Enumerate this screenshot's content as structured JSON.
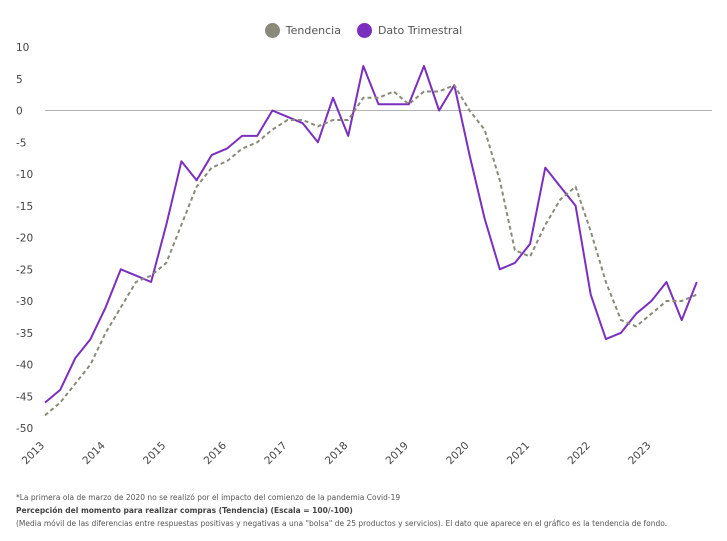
{
  "chart_data": {
    "type": "line",
    "legend": [
      {
        "name": "Tendencia",
        "color": "#8a8a7a",
        "style": "dashed"
      },
      {
        "name": "Dato Trimestral",
        "color": "#7b2fbf",
        "style": "solid"
      }
    ],
    "yticks": [
      10,
      5,
      0,
      -5,
      -10,
      -15,
      -20,
      -25,
      -30,
      -35,
      -40,
      -45,
      -50
    ],
    "ylim": [
      -50,
      10
    ],
    "xticks": [
      "2013",
      "2014",
      "2015",
      "2016",
      "2017",
      "2018",
      "2019",
      "2020",
      "2021",
      "2022",
      "2023"
    ],
    "xlim": [
      2013,
      2024.0
    ],
    "series": [
      {
        "name": "Dato Trimestral",
        "color": "#7b2fbf",
        "x": [
          2013.0,
          2013.25,
          2013.5,
          2013.75,
          2014.0,
          2014.25,
          2014.5,
          2014.75,
          2015.0,
          2015.25,
          2015.5,
          2015.75,
          2016.0,
          2016.25,
          2016.5,
          2016.75,
          2017.0,
          2017.25,
          2017.5,
          2017.75,
          2018.0,
          2018.25,
          2018.5,
          2018.75,
          2019.0,
          2019.25,
          2019.5,
          2019.75,
          2020.0,
          2020.25,
          2020.5,
          2020.75,
          2021.0,
          2021.25,
          2021.5,
          2021.75,
          2022.0,
          2022.25,
          2022.5,
          2022.75,
          2023.0,
          2023.25,
          2023.5,
          2023.75
        ],
        "values": [
          -46,
          -44,
          -39,
          -36,
          -31,
          -25,
          -26,
          -27,
          -18,
          -8,
          -11,
          -7,
          -6,
          -4,
          -4,
          0,
          -1,
          -2,
          -5,
          2,
          -4,
          7,
          1,
          1,
          1,
          7,
          0,
          4,
          -7,
          -17,
          -25,
          -24,
          -21,
          -9,
          -12,
          -15,
          -29,
          -36,
          -35,
          -32,
          -30,
          -27,
          -33,
          -27
        ]
      },
      {
        "name": "Tendencia",
        "color": "#8a8a7a",
        "x": [
          2013.0,
          2013.25,
          2013.5,
          2013.75,
          2014.0,
          2014.25,
          2014.5,
          2014.75,
          2015.0,
          2015.25,
          2015.5,
          2015.75,
          2016.0,
          2016.25,
          2016.5,
          2016.75,
          2017.0,
          2017.25,
          2017.5,
          2017.75,
          2018.0,
          2018.25,
          2018.5,
          2018.75,
          2019.0,
          2019.25,
          2019.5,
          2019.75,
          2020.0,
          2020.25,
          2020.5,
          2020.75,
          2021.0,
          2021.25,
          2021.5,
          2021.75,
          2022.0,
          2022.25,
          2022.5,
          2022.75,
          2023.0,
          2023.25,
          2023.5,
          2023.75
        ],
        "values": [
          -48,
          -46,
          -43,
          -40,
          -35,
          -31,
          -27,
          -26,
          -24,
          -18,
          -12,
          -9,
          -8,
          -6,
          -5,
          -3,
          -1.5,
          -1.5,
          -2.5,
          -1.5,
          -1.5,
          2,
          2,
          3,
          1,
          3,
          3,
          4,
          0,
          -3,
          -11,
          -22,
          -23,
          -18,
          -14,
          -12,
          -19,
          -27,
          -33,
          -34,
          -32,
          -30,
          -30,
          -29
        ]
      }
    ],
    "grid": false,
    "zero_line": true,
    "legend_position": "top-center"
  },
  "footnotes": {
    "note": "*La primera ola de marzo de 2020 no se realizó por el impacto del comienzo de la pandemia Covid-19",
    "title": "Percepción del momento para realizar compras (Tendencia)  (Escala = 100/-100)",
    "description": "(Media móvil de las diferencias entre respuestas positivas y negativas a una \"bolsa\" de 25 productos y servicios). El dato que aparece en el gráfico es la tendencia de fondo."
  }
}
